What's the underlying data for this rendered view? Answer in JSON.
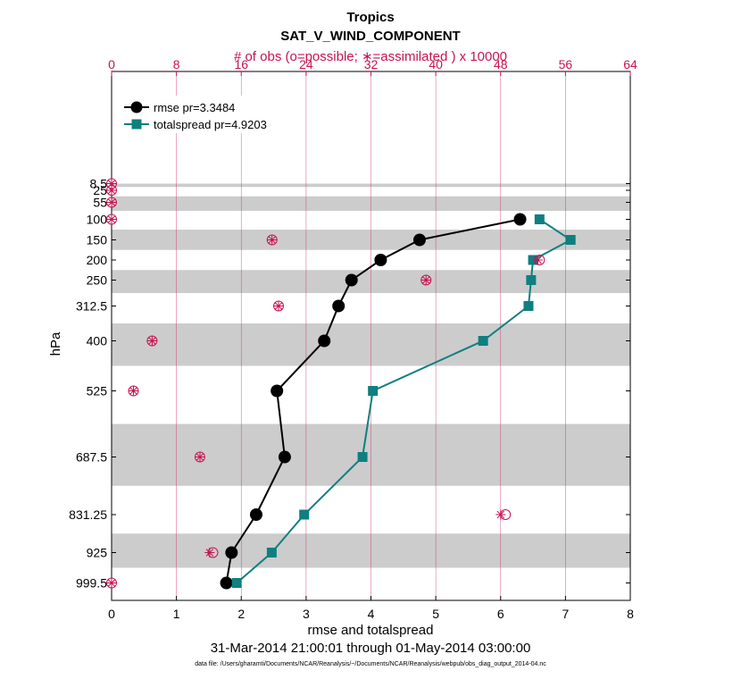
{
  "title": "Tropics",
  "subtitle": "SAT_V_WIND_COMPONENT",
  "top_axis_label": "# of obs (o=possible; ∗=assimilated ) x 10000",
  "date_range": "31-Mar-2014 21:00:01 through 01-May-2014 03:00:00",
  "footnote": "data file: /Users/gharamti/Documents/NCAR/Reanalysis/~/Documents/NCAR/Reanalysis/webpub/obs_diag_output_2014-04.nc",
  "colors": {
    "rmse": "#000000",
    "spread": "#0f7f80",
    "obs": "#c8144f",
    "band": "#cccccc"
  },
  "chart_data": {
    "type": "line",
    "xlabel": "rmse and totalspread",
    "ylabel": "hPa",
    "xlim": [
      0,
      8
    ],
    "xticks": [
      "0",
      "1",
      "2",
      "3",
      "4",
      "5",
      "6",
      "7",
      "8"
    ],
    "top_xlim": [
      0,
      64
    ],
    "top_xticks": [
      "0",
      "8",
      "16",
      "24",
      "32",
      "40",
      "48",
      "56",
      "64"
    ],
    "levels": [
      "8.5",
      "25",
      "55",
      "100",
      "150",
      "200",
      "250",
      "312.5",
      "400",
      "525",
      "687.5",
      "831.25",
      "925",
      "999.5"
    ],
    "shaded_bands": [
      [
        0,
        0.5
      ],
      [
        1.5,
        2.5
      ],
      [
        3.5,
        4.5
      ],
      [
        5.5,
        6.5
      ],
      [
        7.5,
        8.5
      ],
      [
        9.5,
        10.5
      ],
      [
        11.5,
        12.5
      ]
    ],
    "series": [
      {
        "name": "rmse pr=3.3484",
        "marker": "circle",
        "points": [
          [
            6.3,
            3
          ],
          [
            4.75,
            4
          ],
          [
            4.15,
            5
          ],
          [
            3.7,
            6
          ],
          [
            3.5,
            7
          ],
          [
            3.28,
            8
          ],
          [
            2.55,
            9
          ],
          [
            2.67,
            10
          ],
          [
            2.23,
            11
          ],
          [
            1.85,
            12
          ],
          [
            1.77,
            13
          ]
        ]
      },
      {
        "name": "totalspread pr=4.9203",
        "marker": "square",
        "points": [
          [
            6.6,
            3
          ],
          [
            7.08,
            4
          ],
          [
            6.5,
            5
          ],
          [
            6.47,
            6
          ],
          [
            6.43,
            7
          ],
          [
            5.73,
            8
          ],
          [
            4.03,
            9
          ],
          [
            3.87,
            10
          ],
          [
            2.97,
            11
          ],
          [
            2.47,
            12
          ],
          [
            1.93,
            13
          ]
        ]
      }
    ],
    "obs_possible": [
      [
        0,
        0
      ],
      [
        0,
        1
      ],
      [
        0,
        2
      ],
      [
        0,
        3
      ],
      [
        19.8,
        4
      ],
      [
        52.8,
        5
      ],
      [
        38.8,
        6
      ],
      [
        20.6,
        7
      ],
      [
        5,
        8
      ],
      [
        2.7,
        9
      ],
      [
        10.9,
        10
      ],
      [
        48.6,
        11
      ],
      [
        12.5,
        12
      ],
      [
        0,
        13
      ]
    ],
    "obs_assimilated": [
      [
        0,
        0
      ],
      [
        0,
        1
      ],
      [
        0,
        2
      ],
      [
        0,
        3
      ],
      [
        19.8,
        4
      ],
      [
        52.6,
        5
      ],
      [
        38.8,
        6
      ],
      [
        20.6,
        7
      ],
      [
        5,
        8
      ],
      [
        2.7,
        9
      ],
      [
        10.9,
        10
      ],
      [
        48.0,
        11
      ],
      [
        12.1,
        12
      ],
      [
        0,
        13
      ]
    ]
  }
}
